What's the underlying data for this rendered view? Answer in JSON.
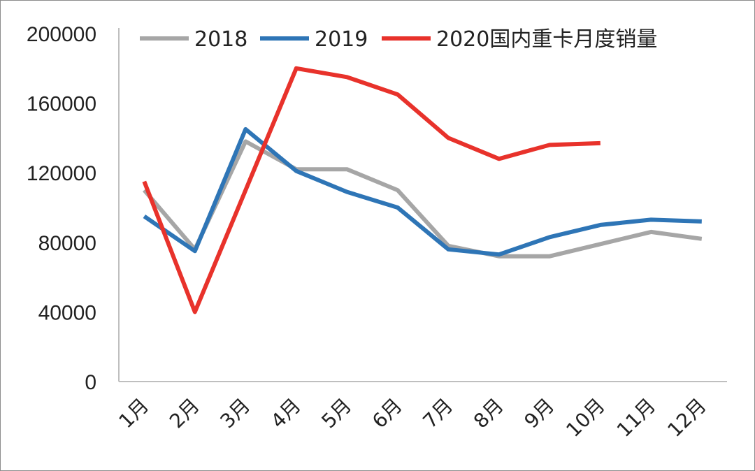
{
  "chart_data": {
    "type": "line",
    "categories": [
      "1月",
      "2月",
      "3月",
      "4月",
      "5月",
      "6月",
      "7月",
      "8月",
      "9月",
      "10月",
      "11月",
      "12月"
    ],
    "series": [
      {
        "name": "2018",
        "color": "#a6a6a6",
        "values": [
          110000,
          76000,
          138000,
          122000,
          122000,
          110000,
          78000,
          72000,
          72000,
          79000,
          86000,
          82000
        ]
      },
      {
        "name": "2019",
        "color": "#2e75b6",
        "values": [
          95000,
          75000,
          145000,
          121000,
          109000,
          100000,
          76000,
          73000,
          83000,
          90000,
          93000,
          92000
        ]
      },
      {
        "name": "2020国内重卡月度销量",
        "color": "#e8322b",
        "values": [
          115000,
          40000,
          110000,
          180000,
          175000,
          165000,
          140000,
          128000,
          136000,
          137000,
          null,
          null
        ]
      }
    ],
    "y_ticks": [
      "0",
      "40000",
      "80000",
      "120000",
      "160000",
      "200000"
    ],
    "ylim": [
      0,
      200000
    ],
    "grid": false,
    "legend_position": "top"
  }
}
